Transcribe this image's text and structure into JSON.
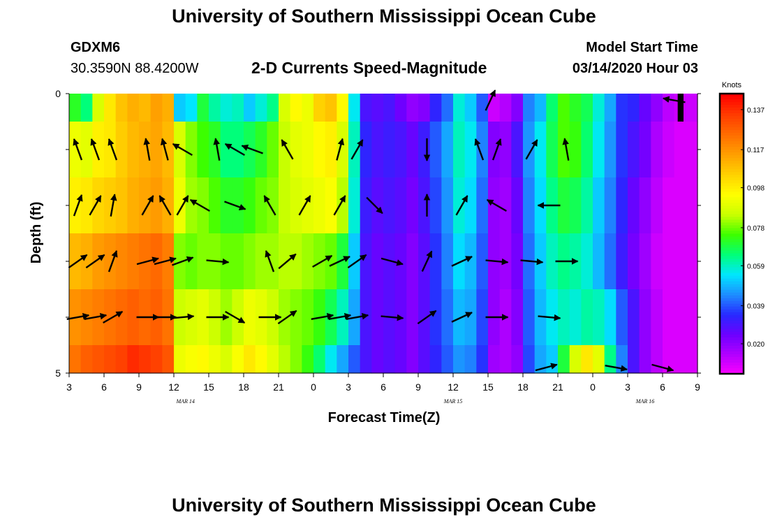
{
  "page": {
    "title_top": "University of Southern Mississippi Ocean Cube",
    "title_bottom": "University of Southern Mississippi Ocean Cube",
    "station_id": "GDXM6",
    "station_coords": "30.3590N 88.4200W",
    "plot_title": "2-D Currents Speed-Magnitude",
    "model_start_label": "Model Start Time",
    "model_start_value": "03/14/2020 Hour 03"
  },
  "colors": {
    "palette": [
      "#ff00ff",
      "#b400ff",
      "#6e00ff",
      "#2828ff",
      "#1e8cff",
      "#00e6ff",
      "#00ff7a",
      "#3cff00",
      "#c8ff00",
      "#ffff00",
      "#ffd200",
      "#ffa000",
      "#ff6e00",
      "#ff3c00",
      "#ff0000"
    ],
    "arrow": "#000000",
    "black_bar": "#000000"
  },
  "chart_data": {
    "type": "heatmap",
    "title": "2-D Currents Speed-Magnitude",
    "xlabel": "Forecast Time(Z)",
    "ylabel": "Depth (ft)",
    "x_range_hours": [
      0,
      54
    ],
    "y_range_ft": [
      0,
      5
    ],
    "x_ticks": [
      {
        "h": 0,
        "label": "3"
      },
      {
        "h": 3,
        "label": "6"
      },
      {
        "h": 6,
        "label": "9"
      },
      {
        "h": 9,
        "label": "12"
      },
      {
        "h": 12,
        "label": "15"
      },
      {
        "h": 15,
        "label": "18"
      },
      {
        "h": 18,
        "label": "21"
      },
      {
        "h": 21,
        "label": "0"
      },
      {
        "h": 24,
        "label": "3"
      },
      {
        "h": 27,
        "label": "6"
      },
      {
        "h": 30,
        "label": "9"
      },
      {
        "h": 33,
        "label": "12"
      },
      {
        "h": 36,
        "label": "15"
      },
      {
        "h": 39,
        "label": "18"
      },
      {
        "h": 42,
        "label": "21"
      },
      {
        "h": 45,
        "label": "0"
      },
      {
        "h": 48,
        "label": "3"
      },
      {
        "h": 51,
        "label": "6"
      },
      {
        "h": 54,
        "label": "9"
      }
    ],
    "date_labels": [
      {
        "h": 10,
        "label": "MAR 14"
      },
      {
        "h": 33,
        "label": "MAR 15"
      },
      {
        "h": 49.5,
        "label": "MAR 16"
      }
    ],
    "y_ticks": [
      {
        "v": 0,
        "label": "0"
      },
      {
        "v": 1,
        "label": ""
      },
      {
        "v": 2,
        "label": ""
      },
      {
        "v": 3,
        "label": ""
      },
      {
        "v": 4,
        "label": ""
      },
      {
        "v": 5,
        "label": "5"
      }
    ],
    "colorbar": {
      "unit": "Knots",
      "min": 0.005,
      "max": 0.145,
      "tick_values": [
        0.137,
        0.117,
        0.098,
        0.078,
        0.059,
        0.039,
        0.02
      ],
      "tick_labels": [
        "0.137",
        "0.117",
        "0.098",
        "0.078",
        "0.059",
        "0.039",
        "0.020"
      ]
    },
    "depth_layers": [
      {
        "top": 0.0,
        "bottom": 0.5
      },
      {
        "top": 0.5,
        "bottom": 1.5
      },
      {
        "top": 1.5,
        "bottom": 2.5
      },
      {
        "top": 2.5,
        "bottom": 3.5
      },
      {
        "top": 3.5,
        "bottom": 4.5
      },
      {
        "top": 4.5,
        "bottom": 5.0
      }
    ],
    "hours": [
      0,
      1,
      2,
      3,
      4,
      5,
      6,
      7,
      8,
      9,
      10,
      11,
      12,
      13,
      14,
      15,
      16,
      17,
      18,
      19,
      20,
      21,
      22,
      23,
      24,
      25,
      26,
      27,
      28,
      29,
      30,
      31,
      32,
      33,
      34,
      35,
      36,
      37,
      38,
      39,
      40,
      41,
      42,
      43,
      44,
      45,
      46,
      47,
      48,
      49,
      50,
      51,
      52,
      53
    ],
    "speed_knots": [
      [
        0.072,
        0.065,
        0.088,
        0.1,
        0.108,
        0.112,
        0.11,
        0.115,
        0.112,
        0.052,
        0.055,
        0.07,
        0.062,
        0.058,
        0.06,
        0.052,
        0.058,
        0.064,
        0.088,
        0.096,
        0.092,
        0.105,
        0.108,
        0.096,
        0.056,
        0.03,
        0.028,
        0.03,
        0.025,
        0.02,
        0.022,
        0.034,
        0.042,
        0.058,
        0.052,
        0.04,
        0.012,
        0.015,
        0.022,
        0.044,
        0.05,
        0.066,
        0.076,
        0.072,
        0.068,
        0.058,
        0.048,
        0.036,
        0.034,
        0.026,
        0.02,
        0.014,
        0.012,
        0.012
      ],
      [
        0.092,
        0.09,
        0.098,
        0.1,
        0.106,
        0.11,
        0.112,
        0.114,
        0.11,
        0.088,
        0.08,
        0.075,
        0.072,
        0.065,
        0.065,
        0.068,
        0.072,
        0.078,
        0.085,
        0.09,
        0.092,
        0.096,
        0.098,
        0.088,
        0.06,
        0.034,
        0.03,
        0.032,
        0.03,
        0.026,
        0.032,
        0.04,
        0.048,
        0.06,
        0.056,
        0.044,
        0.022,
        0.02,
        0.03,
        0.046,
        0.056,
        0.068,
        0.076,
        0.074,
        0.066,
        0.056,
        0.046,
        0.036,
        0.03,
        0.024,
        0.016,
        0.012,
        0.01,
        0.01
      ],
      [
        0.098,
        0.1,
        0.104,
        0.106,
        0.108,
        0.112,
        0.114,
        0.116,
        0.112,
        0.092,
        0.082,
        0.08,
        0.076,
        0.072,
        0.072,
        0.074,
        0.078,
        0.08,
        0.085,
        0.088,
        0.09,
        0.092,
        0.094,
        0.084,
        0.058,
        0.032,
        0.028,
        0.03,
        0.028,
        0.024,
        0.03,
        0.038,
        0.046,
        0.058,
        0.054,
        0.042,
        0.02,
        0.018,
        0.026,
        0.044,
        0.054,
        0.064,
        0.07,
        0.068,
        0.062,
        0.052,
        0.044,
        0.034,
        0.026,
        0.02,
        0.014,
        0.01,
        0.01,
        0.01
      ],
      [
        0.11,
        0.112,
        0.116,
        0.118,
        0.12,
        0.122,
        0.124,
        0.126,
        0.122,
        0.08,
        0.078,
        0.08,
        0.08,
        0.078,
        0.078,
        0.08,
        0.082,
        0.082,
        0.084,
        0.084,
        0.082,
        0.08,
        0.078,
        0.07,
        0.052,
        0.03,
        0.026,
        0.028,
        0.026,
        0.022,
        0.028,
        0.036,
        0.044,
        0.054,
        0.05,
        0.04,
        0.02,
        0.018,
        0.024,
        0.042,
        0.052,
        0.06,
        0.064,
        0.062,
        0.058,
        0.05,
        0.042,
        0.032,
        0.024,
        0.018,
        0.012,
        0.01,
        0.01,
        0.01
      ],
      [
        0.118,
        0.12,
        0.122,
        0.124,
        0.126,
        0.128,
        0.126,
        0.128,
        0.124,
        0.086,
        0.088,
        0.09,
        0.086,
        0.082,
        0.086,
        0.092,
        0.09,
        0.086,
        0.082,
        0.08,
        0.078,
        0.074,
        0.068,
        0.06,
        0.048,
        0.03,
        0.026,
        0.028,
        0.026,
        0.022,
        0.028,
        0.036,
        0.042,
        0.05,
        0.048,
        0.038,
        0.02,
        0.016,
        0.022,
        0.04,
        0.05,
        0.056,
        0.06,
        0.058,
        0.062,
        0.06,
        0.054,
        0.04,
        0.03,
        0.02,
        0.014,
        0.01,
        0.01,
        0.01
      ],
      [
        0.124,
        0.128,
        0.13,
        0.132,
        0.134,
        0.138,
        0.136,
        0.134,
        0.13,
        0.092,
        0.094,
        0.096,
        0.092,
        0.088,
        0.094,
        0.1,
        0.096,
        0.09,
        0.084,
        0.08,
        0.074,
        0.066,
        0.056,
        0.048,
        0.04,
        0.03,
        0.026,
        0.028,
        0.026,
        0.022,
        0.028,
        0.034,
        0.04,
        0.046,
        0.044,
        0.036,
        0.018,
        0.016,
        0.02,
        0.038,
        0.048,
        0.052,
        0.07,
        0.088,
        0.1,
        0.09,
        0.064,
        0.044,
        0.03,
        0.02,
        0.014,
        0.01,
        0.01,
        0.01
      ]
    ],
    "vector_rows": [
      {
        "depth": 1.0,
        "dir_deg": [
          340,
          340,
          340,
          null,
          350,
          345,
          300,
          null,
          350,
          300,
          290,
          null,
          330,
          null,
          null,
          15,
          30,
          null,
          null,
          null,
          180,
          null,
          null,
          340,
          20,
          null,
          30,
          null,
          350,
          null,
          null,
          null,
          null,
          null
        ]
      },
      {
        "depth": 2.0,
        "dir_deg": [
          20,
          30,
          10,
          null,
          30,
          330,
          30,
          300,
          null,
          110,
          null,
          330,
          null,
          30,
          null,
          30,
          null,
          135,
          null,
          null,
          0,
          null,
          30,
          null,
          300,
          null,
          null,
          270,
          null,
          null,
          null,
          null,
          null,
          null
        ]
      },
      {
        "depth": 3.0,
        "dir_deg": [
          55,
          55,
          20,
          null,
          75,
          75,
          70,
          null,
          95,
          null,
          null,
          340,
          50,
          null,
          60,
          65,
          55,
          null,
          105,
          null,
          25,
          null,
          65,
          null,
          95,
          null,
          95,
          null,
          90,
          null,
          null,
          null,
          null,
          null
        ]
      },
      {
        "depth": 4.0,
        "dir_deg": [
          80,
          80,
          60,
          null,
          90,
          90,
          85,
          null,
          90,
          120,
          null,
          90,
          55,
          null,
          80,
          80,
          80,
          null,
          95,
          null,
          55,
          null,
          65,
          null,
          90,
          null,
          null,
          95,
          null,
          null,
          null,
          null,
          null,
          null
        ]
      }
    ],
    "bottom_arrows": [
      {
        "h": 41,
        "dir_deg": 75
      },
      {
        "h": 47,
        "dir_deg": 100
      },
      {
        "h": 51,
        "dir_deg": 105
      }
    ],
    "top_arrows": [
      {
        "h": 36.2,
        "dir_deg": 25
      },
      {
        "h": 52,
        "dir_deg": 280
      }
    ],
    "black_bar_h": [
      52.3,
      52.8
    ],
    "black_bar_depth": [
      0,
      0.5
    ]
  }
}
